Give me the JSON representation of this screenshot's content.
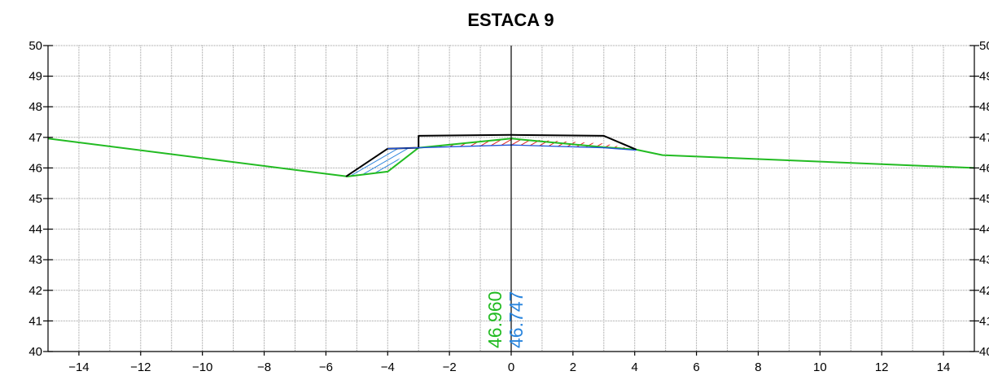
{
  "chart_data": {
    "type": "line",
    "title": "ESTACA 9",
    "xlabel": "",
    "ylabel": "",
    "xlim": [
      -15,
      15
    ],
    "ylim": [
      40,
      50
    ],
    "x_ticks": [
      -14,
      -12,
      -10,
      -8,
      -6,
      -4,
      -2,
      0,
      2,
      4,
      6,
      8,
      10,
      12,
      14
    ],
    "x_tick_labels": [
      "−14",
      "−12",
      "−10",
      "−8",
      "−6",
      "−4",
      "−2",
      "0",
      "2",
      "4",
      "6",
      "8",
      "10",
      "12",
      "14"
    ],
    "y_ticks": [
      40,
      41,
      42,
      43,
      44,
      45,
      46,
      47,
      48,
      49,
      50
    ],
    "y_tick_labels": [
      "40",
      "41",
      "42",
      "43",
      "44",
      "45",
      "46",
      "47",
      "48",
      "49",
      "50"
    ],
    "grid": true,
    "series": [
      {
        "role": "terrain",
        "color": "#22bb22",
        "x": [
          -15,
          -5.3,
          -4.0,
          -3.0,
          0.0,
          3.0,
          4.05,
          4.9,
          15
        ],
        "y": [
          46.96,
          45.72,
          45.88,
          46.66,
          46.96,
          46.68,
          46.6,
          46.42,
          46.0
        ]
      },
      {
        "role": "road-platform",
        "color": "#000000",
        "x": [
          -5.35,
          -4.0,
          -3.0,
          -3.0,
          0.0,
          3.0,
          4.05
        ],
        "y": [
          45.72,
          46.63,
          46.66,
          47.05,
          47.08,
          47.05,
          46.6
        ]
      },
      {
        "role": "subgrade",
        "color": "#2255dd",
        "x": [
          -4.0,
          -3.0,
          0.0,
          3.0,
          4.05
        ],
        "y": [
          46.63,
          46.66,
          46.75,
          46.66,
          46.58
        ]
      }
    ],
    "fill_areas": [
      {
        "role": "fill-hatch",
        "color": "#3388dd",
        "x": [
          -5.3,
          -4.0,
          -3.3,
          -4.0
        ],
        "y": [
          45.72,
          46.63,
          46.65,
          45.88
        ]
      },
      {
        "role": "cut-hatch",
        "color": "#dd2222",
        "x": [
          -3.0,
          0.0,
          3.0,
          4.05,
          3.0,
          0.0
        ],
        "y": [
          46.66,
          46.96,
          46.8,
          46.6,
          46.66,
          46.75
        ]
      }
    ],
    "annotations": [
      {
        "text": "46.960",
        "x": 0,
        "y": 40,
        "color": "#22bb22",
        "rotate": "vertical",
        "side": "left"
      },
      {
        "text": "46.747",
        "x": 0,
        "y": 40,
        "color": "#2a85dd",
        "rotate": "vertical",
        "side": "right"
      }
    ]
  }
}
